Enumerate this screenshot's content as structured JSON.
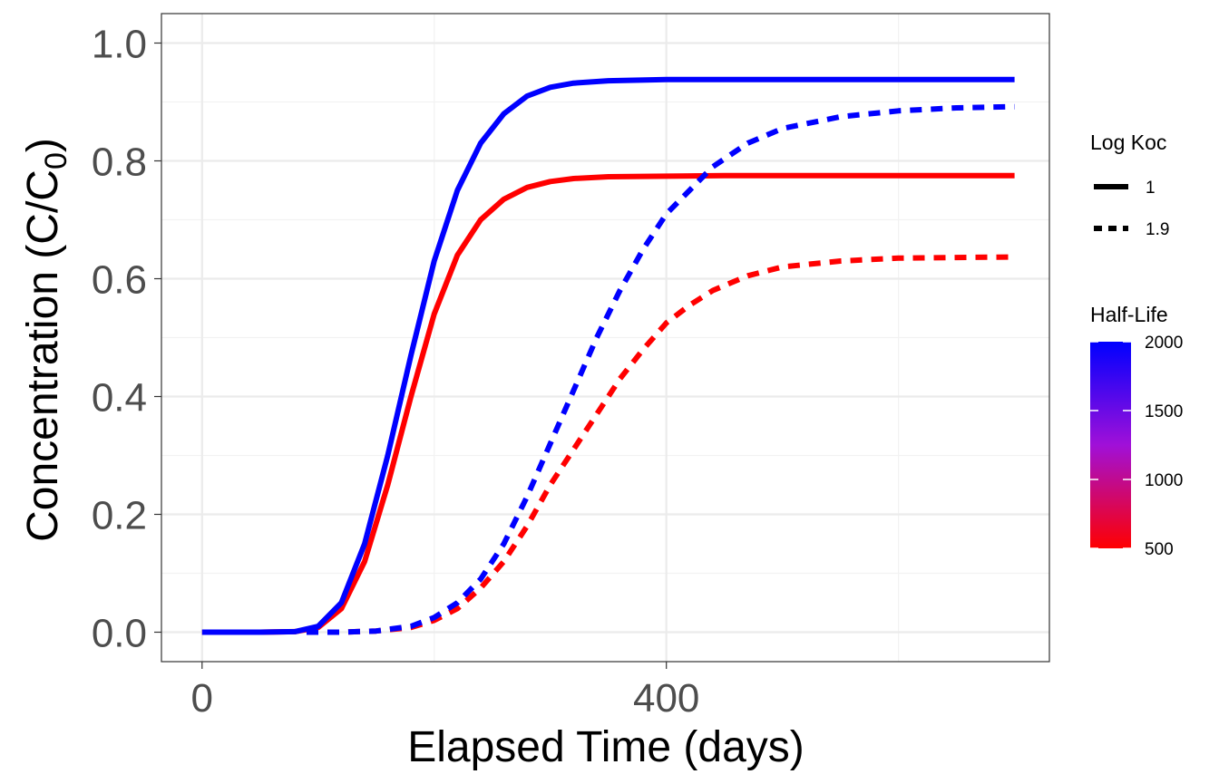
{
  "chart_data": {
    "type": "line",
    "xlabel": "Elapsed Time (days)",
    "ylabel_main": "Concentration (C/C",
    "ylabel_sub": "0",
    "ylabel_end": ")",
    "xlim": [
      -35,
      730
    ],
    "ylim": [
      -0.05,
      1.05
    ],
    "x_ticks": [
      0,
      400
    ],
    "y_ticks": [
      0.0,
      0.2,
      0.4,
      0.6,
      0.8,
      1.0
    ],
    "x_tick_labels": [
      "0",
      "400"
    ],
    "y_tick_labels": [
      "0.0",
      "0.2",
      "0.4",
      "0.6",
      "0.8",
      "1.0"
    ],
    "grid": true,
    "legend_placement": "right",
    "legend_linetype": {
      "title": "Log Koc",
      "entries": [
        {
          "label": "1",
          "linetype": "solid"
        },
        {
          "label": "1.9",
          "linetype": "dashed"
        }
      ]
    },
    "legend_color": {
      "title": "Half-Life",
      "min": 500,
      "max": 2000,
      "ticks": [
        500,
        1000,
        1500,
        2000
      ],
      "tick_labels": [
        "500",
        "1000",
        "1500",
        "2000"
      ],
      "low_color": "#ff0000",
      "high_color": "#0000ff"
    },
    "series": [
      {
        "log_koc": "1",
        "half_life": 2000,
        "color": "#0000ff",
        "linetype": "solid",
        "x": [
          0,
          50,
          80,
          100,
          120,
          140,
          160,
          180,
          200,
          220,
          240,
          260,
          280,
          300,
          320,
          350,
          400,
          450,
          500,
          600,
          700
        ],
        "y": [
          0.0,
          0.0,
          0.001,
          0.01,
          0.05,
          0.15,
          0.3,
          0.47,
          0.63,
          0.75,
          0.83,
          0.88,
          0.91,
          0.925,
          0.932,
          0.936,
          0.938,
          0.938,
          0.938,
          0.938,
          0.938
        ]
      },
      {
        "log_koc": "1",
        "half_life": 500,
        "color": "#ff0000",
        "linetype": "solid",
        "x": [
          0,
          50,
          80,
          100,
          120,
          140,
          160,
          180,
          200,
          220,
          240,
          260,
          280,
          300,
          320,
          350,
          400,
          450,
          500,
          600,
          700
        ],
        "y": [
          0.0,
          0.0,
          0.001,
          0.008,
          0.04,
          0.12,
          0.25,
          0.4,
          0.54,
          0.64,
          0.7,
          0.735,
          0.755,
          0.765,
          0.77,
          0.773,
          0.774,
          0.775,
          0.775,
          0.775,
          0.775
        ]
      },
      {
        "log_koc": "1.9",
        "half_life": 2000,
        "color": "#0000ff",
        "linetype": "dashed",
        "x": [
          90,
          120,
          150,
          180,
          200,
          220,
          240,
          260,
          280,
          300,
          320,
          340,
          360,
          380,
          400,
          420,
          440,
          470,
          500,
          550,
          600,
          650,
          700
        ],
        "y": [
          0.0,
          0.0,
          0.002,
          0.01,
          0.025,
          0.05,
          0.09,
          0.15,
          0.23,
          0.32,
          0.41,
          0.5,
          0.58,
          0.65,
          0.71,
          0.75,
          0.79,
          0.83,
          0.855,
          0.875,
          0.885,
          0.89,
          0.892
        ]
      },
      {
        "log_koc": "1.9",
        "half_life": 500,
        "color": "#ff0000",
        "linetype": "dashed",
        "x": [
          90,
          120,
          150,
          180,
          200,
          220,
          240,
          260,
          280,
          300,
          320,
          340,
          360,
          380,
          400,
          420,
          440,
          470,
          500,
          550,
          600,
          650,
          700
        ],
        "y": [
          0.0,
          0.0,
          0.002,
          0.008,
          0.02,
          0.04,
          0.075,
          0.12,
          0.18,
          0.25,
          0.31,
          0.37,
          0.43,
          0.48,
          0.525,
          0.555,
          0.58,
          0.605,
          0.62,
          0.63,
          0.635,
          0.636,
          0.637
        ]
      }
    ]
  }
}
